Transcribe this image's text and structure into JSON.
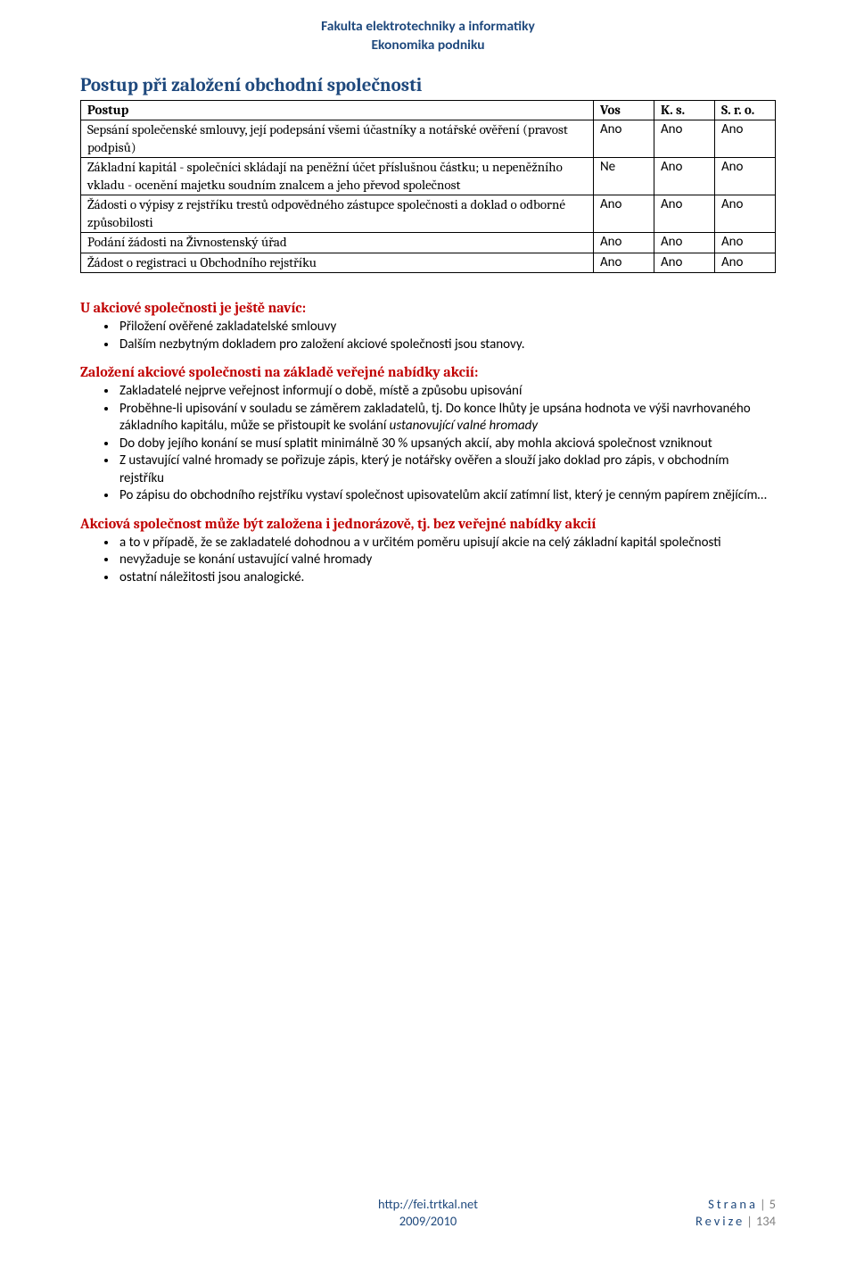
{
  "header": {
    "line1": "Fakulta elektrotechniky a informatiky",
    "line2": "Ekonomika podniku"
  },
  "title": "Postup při založení obchodní společnosti",
  "table": {
    "head": [
      "Postup",
      "Vos",
      "K. s.",
      "S. r. o."
    ],
    "rows": [
      {
        "desc": "Sepsání společenské smlouvy, její podepsání všemi účastníky a notářské ověření (pravost podpisů)",
        "c1": "Ano",
        "c2": "Ano",
        "c3": "Ano"
      },
      {
        "desc": "Základní kapitál  - společníci skládají na peněžní účet příslušnou částku; u nepeněžního vkladu - ocenění majetku soudním znalcem a jeho převod společnost",
        "c1": "Ne",
        "c2": "Ano",
        "c3": "Ano"
      },
      {
        "desc": "Žádosti o výpisy z rejstříku trestů odpovědného zástupce společnosti a doklad o odborné způsobilosti",
        "c1": "Ano",
        "c2": "Ano",
        "c3": "Ano"
      },
      {
        "desc": "Podání žádosti na Živnostenský úřad",
        "c1": "Ano",
        "c2": "Ano",
        "c3": "Ano"
      },
      {
        "desc": "Žádost o registraci u Obchodního rejstříku",
        "c1": "Ano",
        "c2": "Ano",
        "c3": "Ano"
      }
    ]
  },
  "sec1": {
    "title": "U akciové společnosti je ještě navíc:",
    "items": [
      "Přiložení ověřené zakladatelské smlouvy",
      "Dalším nezbytným dokladem pro založení akciové společnosti jsou stanovy."
    ]
  },
  "sec2": {
    "title": "Založení akciové společnosti na základě veřejné nabídky akcií:",
    "items": [
      {
        "t": "Zakladatelé nejprve veřejnost informují o době, místě a způsobu upisování"
      },
      {
        "t": "Proběhne-li upisování v souladu se záměrem zakladatelů, tj. Do konce lhůty je upsána hodnota ve výši navrhovaného základního kapitálu, může se přistoupit ke svolání ",
        "i": "ustanovující valné hromady"
      },
      {
        "t": "Do doby jejího konání se musí splatit minimálně 30 % upsaných akcií, aby mohla akciová společnost vzniknout"
      },
      {
        "t": "Z ustavující valné hromady se pořizuje zápis, který je notářsky ověřen a slouží jako doklad pro zápis, v obchodním rejstříku"
      },
      {
        "t": "Po zápisu do obchodního rejstříku vystaví společnost upisovatelům akcií zatímní list, který je cenným papírem znějícím…"
      }
    ]
  },
  "sec3": {
    "title": "Akciová společnost může být založena i jednorázově, tj. bez veřejné nabídky akcií",
    "items": [
      "a to v případě, že se zakladatelé dohodnou a v určitém poměru upisují akcie na celý základní kapitál společnosti",
      "nevyžaduje se konání ustavující valné hromady",
      " ostatní náležitosti jsou analogické."
    ]
  },
  "footer": {
    "url": "http://fei.trtkal.net",
    "year": "2009/2010",
    "page_lbl": "Strana",
    "page_no": "5",
    "rev_lbl": "Revize",
    "rev_no": "134"
  }
}
